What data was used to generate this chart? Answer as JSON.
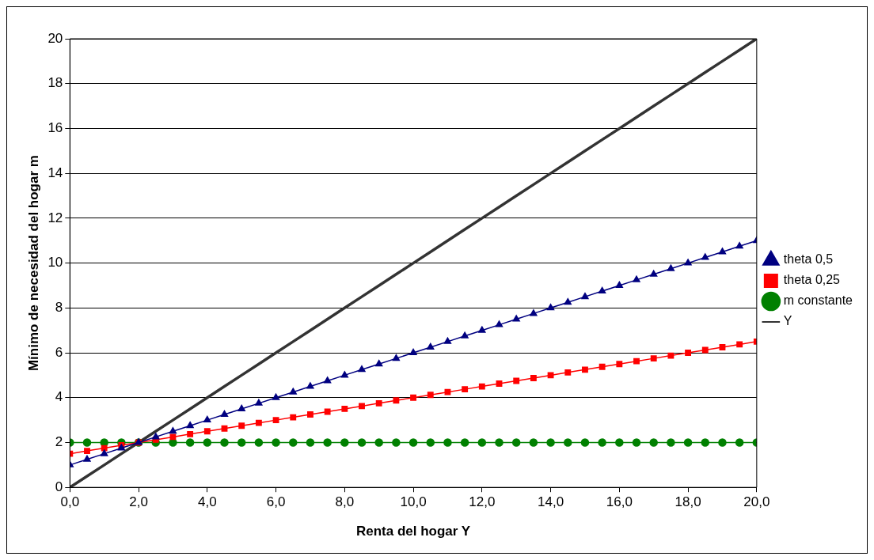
{
  "chart_data": {
    "type": "line",
    "xlabel": "Renta del hogar Y",
    "ylabel": "Mínimo de necesidad del hogar m",
    "x": [
      0,
      0.5,
      1,
      1.5,
      2,
      2.5,
      3,
      3.5,
      4,
      4.5,
      5,
      5.5,
      6,
      6.5,
      7,
      7.5,
      8,
      8.5,
      9,
      9.5,
      10,
      10.5,
      11,
      11.5,
      12,
      12.5,
      13,
      13.5,
      14,
      14.5,
      15,
      15.5,
      16,
      16.5,
      17,
      17.5,
      18,
      18.5,
      19,
      19.5,
      20
    ],
    "xlim": [
      0,
      20
    ],
    "xticks": [
      {
        "value": 0,
        "label": "0,0"
      },
      {
        "value": 2,
        "label": "2,0"
      },
      {
        "value": 4,
        "label": "4,0"
      },
      {
        "value": 6,
        "label": "6,0"
      },
      {
        "value": 8,
        "label": "8,0"
      },
      {
        "value": 10,
        "label": "10,0"
      },
      {
        "value": 12,
        "label": "12,0"
      },
      {
        "value": 14,
        "label": "14,0"
      },
      {
        "value": 16,
        "label": "16,0"
      },
      {
        "value": 18,
        "label": "18,0"
      },
      {
        "value": 20,
        "label": "20,0"
      }
    ],
    "ylim": [
      0,
      20
    ],
    "yticks": [
      0,
      2,
      4,
      6,
      8,
      10,
      12,
      14,
      16,
      18,
      20
    ],
    "grid": "y",
    "legend": "right",
    "line_style": "solid",
    "series": [
      {
        "name": "theta 0,5",
        "color": "#000080",
        "marker": "triangle",
        "values": [
          1,
          1.25,
          1.5,
          1.75,
          2,
          2.25,
          2.5,
          2.75,
          3,
          3.25,
          3.5,
          3.75,
          4,
          4.25,
          4.5,
          4.75,
          5,
          5.25,
          5.5,
          5.75,
          6,
          6.25,
          6.5,
          6.75,
          7,
          7.25,
          7.5,
          7.75,
          8,
          8.25,
          8.5,
          8.75,
          9,
          9.25,
          9.5,
          9.75,
          10,
          10.25,
          10.5,
          10.75,
          11
        ]
      },
      {
        "name": "theta 0,25",
        "color": "#ff0000",
        "marker": "square",
        "values": [
          1.5,
          1.625,
          1.75,
          1.875,
          2,
          2.125,
          2.25,
          2.375,
          2.5,
          2.625,
          2.75,
          2.875,
          3,
          3.125,
          3.25,
          3.375,
          3.5,
          3.625,
          3.75,
          3.875,
          4,
          4.125,
          4.25,
          4.375,
          4.5,
          4.625,
          4.75,
          4.875,
          5,
          5.125,
          5.25,
          5.375,
          5.5,
          5.625,
          5.75,
          5.875,
          6,
          6.125,
          6.25,
          6.375,
          6.5
        ]
      },
      {
        "name": "m constante",
        "color": "#008000",
        "marker": "circle",
        "values": [
          2,
          2,
          2,
          2,
          2,
          2,
          2,
          2,
          2,
          2,
          2,
          2,
          2,
          2,
          2,
          2,
          2,
          2,
          2,
          2,
          2,
          2,
          2,
          2,
          2,
          2,
          2,
          2,
          2,
          2,
          2,
          2,
          2,
          2,
          2,
          2,
          2,
          2,
          2,
          2,
          2
        ]
      },
      {
        "name": "Y",
        "color": "#333333",
        "marker": "none",
        "values": [
          0,
          0.5,
          1,
          1.5,
          2,
          2.5,
          3,
          3.5,
          4,
          4.5,
          5,
          5.5,
          6,
          6.5,
          7,
          7.5,
          8,
          8.5,
          9,
          9.5,
          10,
          10.5,
          11,
          11.5,
          12,
          12.5,
          13,
          13.5,
          14,
          14.5,
          15,
          15.5,
          16,
          16.5,
          17,
          17.5,
          18,
          18.5,
          19,
          19.5,
          20
        ]
      }
    ]
  }
}
